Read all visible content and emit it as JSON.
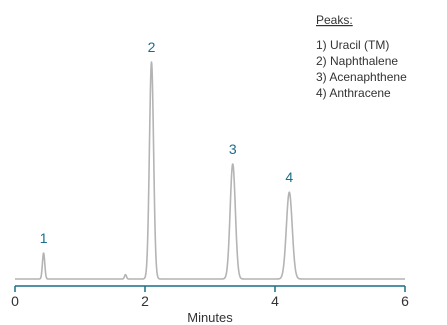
{
  "chart_data": {
    "type": "line",
    "xlabel": "Minutes",
    "xlim": [
      0,
      6
    ],
    "ylim": [
      0,
      1
    ],
    "x_ticks": [
      "0",
      "2",
      "4",
      "6"
    ],
    "grid": false,
    "line_color": "#b4b4b4",
    "axis_color": "#1a6d8a",
    "label_color": "#1a6d8a",
    "baseline": 0.0,
    "peaks": [
      {
        "label": "1",
        "x": 0.44,
        "height": 0.12,
        "width": 0.018
      },
      {
        "label": "2",
        "x": 2.1,
        "height": 1.0,
        "width": 0.032
      },
      {
        "label": "3",
        "x": 3.35,
        "height": 0.53,
        "width": 0.04
      },
      {
        "label": "4",
        "x": 4.22,
        "height": 0.4,
        "width": 0.045
      }
    ],
    "minor_peaks": [
      {
        "x": 1.7,
        "height": 0.02,
        "width": 0.015
      }
    ],
    "legend": {
      "title": "Peaks",
      "title_suffix": ":",
      "items": [
        "1) Uracil (TM)",
        "2) Naphthalene",
        "3) Acenaphthene",
        "4) Anthracene"
      ]
    }
  }
}
